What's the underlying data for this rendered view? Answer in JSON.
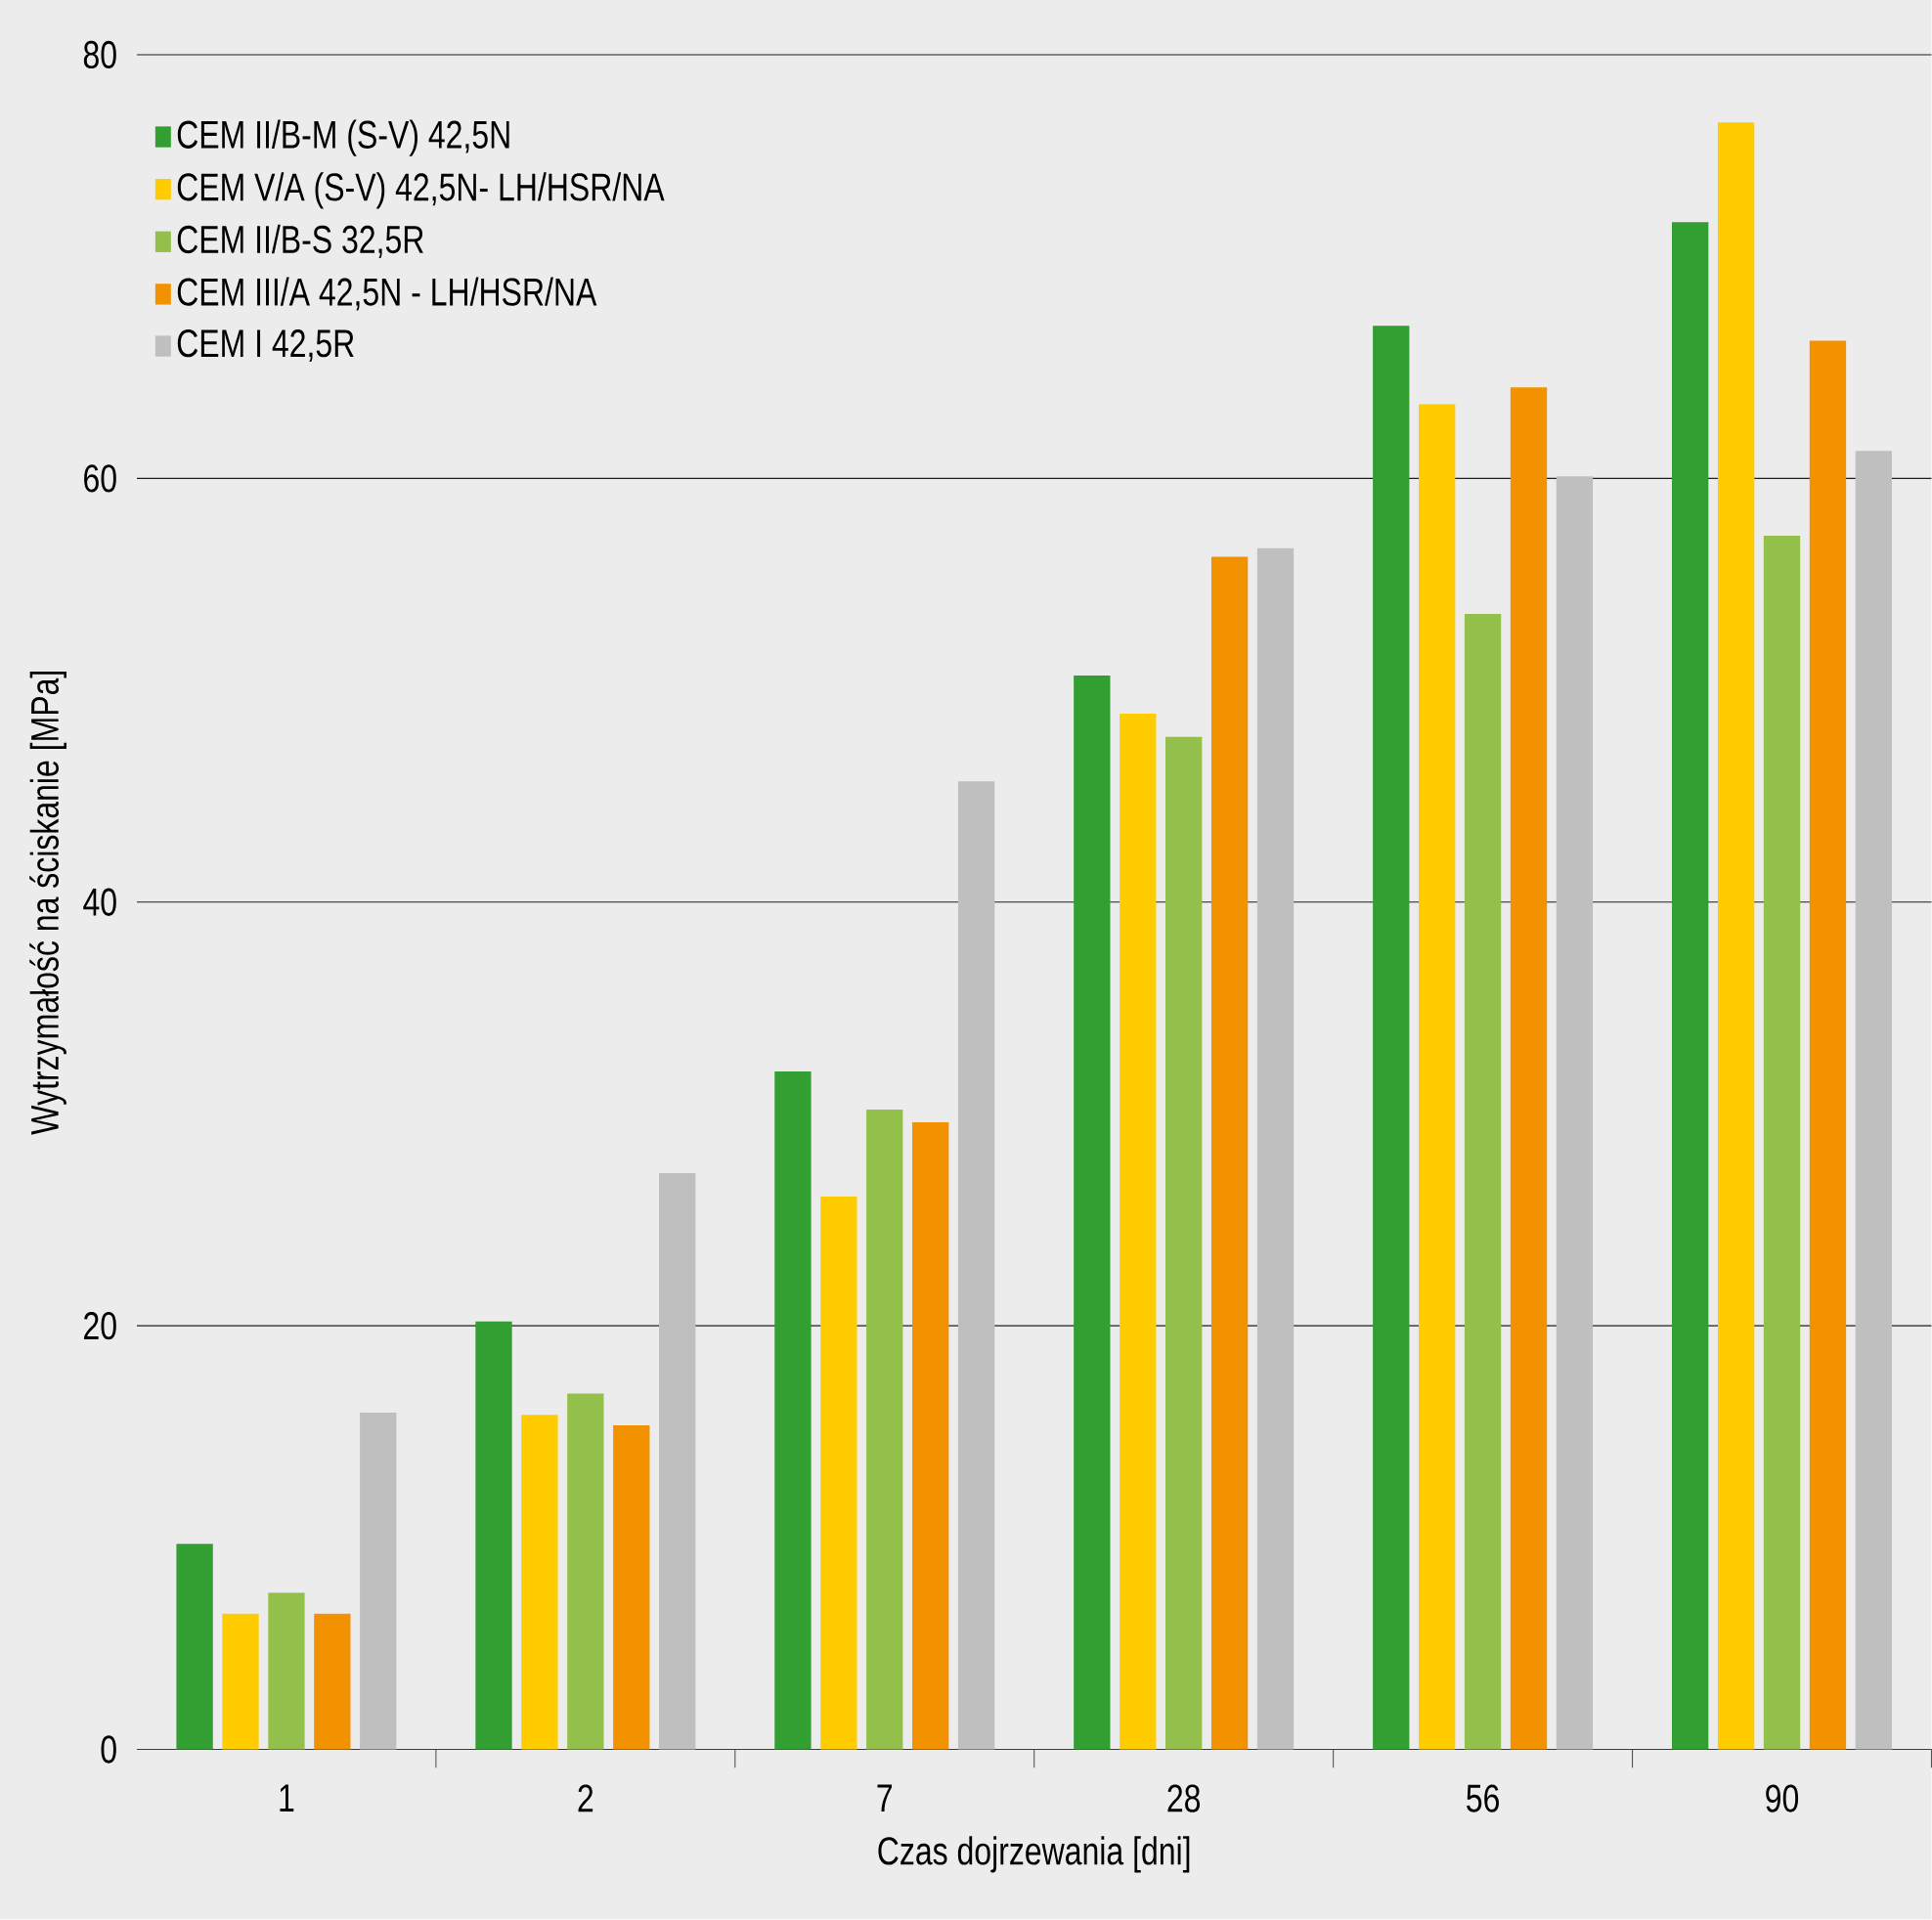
{
  "chart_data": {
    "type": "bar",
    "xlabel": "Czas dojrzewania [dni]",
    "ylabel": "Wytrzymałość na ściskanie [MPa]",
    "categories": [
      "1",
      "2",
      "7",
      "28",
      "56",
      "90"
    ],
    "series": [
      {
        "name": "CEM II/B-M (S-V) 42,5N",
        "color": "#339e31",
        "values": [
          9.7,
          20.2,
          32.0,
          50.7,
          67.2,
          72.1
        ]
      },
      {
        "name": "CEM V/A (S-V) 42,5N- LH/HSR/NA",
        "color": "#ffcc00",
        "values": [
          6.4,
          15.8,
          26.1,
          48.9,
          63.5,
          76.8
        ]
      },
      {
        "name": "CEM II/B-S 32,5R",
        "color": "#92c04b",
        "values": [
          7.4,
          16.8,
          30.2,
          47.8,
          53.6,
          57.3
        ]
      },
      {
        "name": "CEM III/A 42,5N - LH/HSR/NA",
        "color": "#f39200",
        "values": [
          6.4,
          15.3,
          29.6,
          56.3,
          64.3,
          66.5
        ]
      },
      {
        "name": "CEM I 42,5R",
        "color": "#bfbfbf",
        "values": [
          15.9,
          27.2,
          45.7,
          56.7,
          60.1,
          61.3
        ]
      }
    ],
    "ylim": [
      0,
      80
    ],
    "yticks": [
      0,
      20,
      40,
      60,
      80
    ],
    "grid": "y",
    "legend": "top left"
  }
}
